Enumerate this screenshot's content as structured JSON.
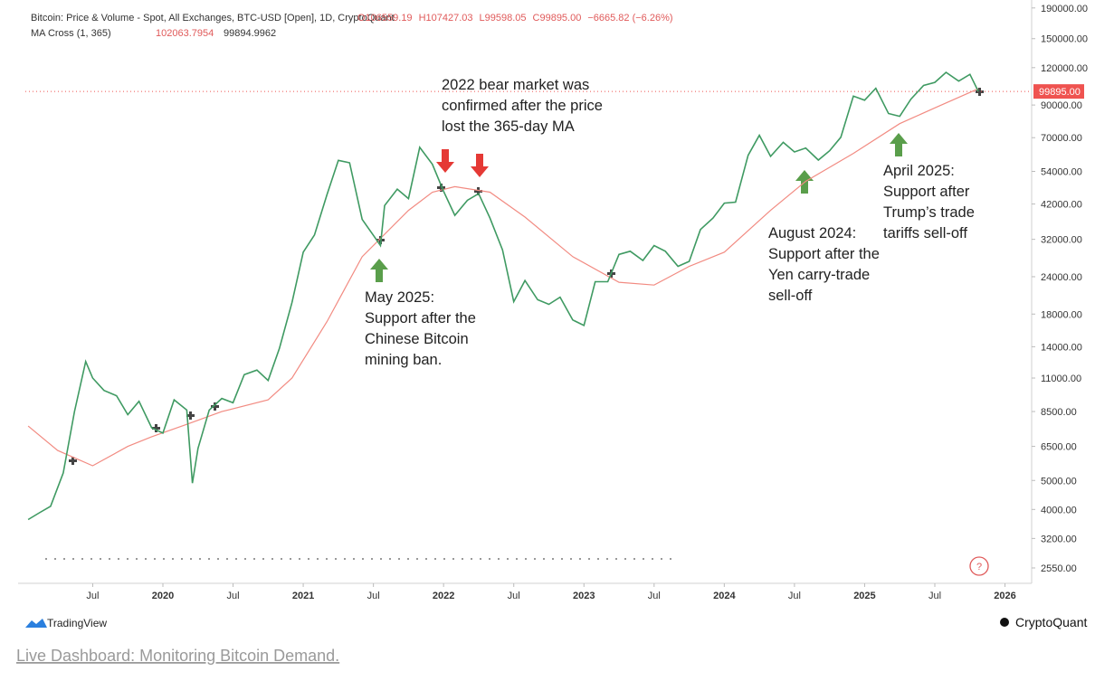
{
  "chart_data": {
    "type": "line",
    "title": "Bitcoin: Price & Volume - Spot, All Exchanges, BTC-USD [Open], 1D, CryptoQuant",
    "ohlc": [
      "O106559.19",
      "H107427.03",
      "L99598.05",
      "C99895.00",
      "−6665.82 (−6.26%)"
    ],
    "indicator": "MA Cross (1, 365)",
    "indicator_values": [
      "102063.7954",
      "99894.9962"
    ],
    "log_scale": true,
    "xlim": [
      2019.02,
      2026.19
    ],
    "ylim": [
      2265,
      202000
    ],
    "xticks": [
      {
        "value": 2019.5,
        "label": "Jul"
      },
      2020,
      {
        "value": 2020.5,
        "label": "Jul"
      },
      2021,
      {
        "value": 2021.5,
        "label": "Jul"
      },
      2022,
      {
        "value": 2022.5,
        "label": "Jul"
      },
      2023,
      {
        "value": 2023.5,
        "label": "Jul"
      },
      2024,
      {
        "value": 2024.5,
        "label": "Jul"
      },
      2025,
      {
        "value": 2025.5,
        "label": "Jul"
      },
      2026
    ],
    "yticks": [
      {
        "value": 190000,
        "label": "190000.00"
      },
      {
        "value": 150000,
        "label": "150000.00"
      },
      {
        "value": 120000,
        "label": "120000.00"
      },
      {
        "value": 90000,
        "label": "90000.00"
      },
      {
        "value": 70000,
        "label": "70000.00"
      },
      {
        "value": 54000,
        "label": "54000.00"
      },
      {
        "value": 42000,
        "label": "42000.00"
      },
      {
        "value": 32000,
        "label": "32000.00"
      },
      {
        "value": 24000,
        "label": "24000.00"
      },
      {
        "value": 18000,
        "label": "18000.00"
      },
      {
        "value": 14000,
        "label": "14000.00"
      },
      {
        "value": 11000,
        "label": "11000.00"
      },
      {
        "value": 8500,
        "label": "8500.00"
      },
      {
        "value": 6500,
        "label": "6500.00"
      },
      {
        "value": 5000,
        "label": "5000.00"
      },
      {
        "value": 4000,
        "label": "4000.00"
      },
      {
        "value": 3200,
        "label": "3200.00"
      },
      {
        "value": 2550,
        "label": "2550.00"
      }
    ],
    "price_line": {
      "value": 99895,
      "label": "99895.00",
      "color": "#ef5350"
    },
    "series": [
      {
        "name": "Price",
        "color": "#3f9a62",
        "x": [
          2019.04,
          2019.12,
          2019.2,
          2019.29,
          2019.37,
          2019.45,
          2019.5,
          2019.58,
          2019.67,
          2019.75,
          2019.83,
          2019.92,
          2020.0,
          2020.08,
          2020.17,
          2020.21,
          2020.25,
          2020.33,
          2020.42,
          2020.5,
          2020.58,
          2020.67,
          2020.75,
          2020.83,
          2020.92,
          2021.0,
          2021.08,
          2021.17,
          2021.25,
          2021.33,
          2021.42,
          2021.5,
          2021.55,
          2021.58,
          2021.67,
          2021.75,
          2021.83,
          2021.92,
          2022.0,
          2022.08,
          2022.17,
          2022.25,
          2022.33,
          2022.42,
          2022.5,
          2022.58,
          2022.67,
          2022.75,
          2022.83,
          2022.92,
          2023.0,
          2023.08,
          2023.17,
          2023.25,
          2023.33,
          2023.42,
          2023.5,
          2023.58,
          2023.67,
          2023.75,
          2023.83,
          2023.92,
          2024.0,
          2024.08,
          2024.17,
          2024.25,
          2024.33,
          2024.42,
          2024.5,
          2024.58,
          2024.67,
          2024.75,
          2024.83,
          2024.92,
          2025.0,
          2025.08,
          2025.17,
          2025.25,
          2025.33,
          2025.42,
          2025.5,
          2025.58,
          2025.67,
          2025.75,
          2025.81
        ],
        "values": [
          3700,
          3900,
          4100,
          5300,
          8500,
          12500,
          11000,
          10000,
          9600,
          8300,
          9200,
          7500,
          7200,
          9300,
          8600,
          4900,
          6400,
          8600,
          9400,
          9100,
          11300,
          11700,
          10800,
          13800,
          19700,
          29000,
          33100,
          45200,
          58800,
          57700,
          37300,
          33000,
          30500,
          41500,
          47100,
          43800,
          65000,
          57000,
          46300,
          38500,
          43200,
          45500,
          37700,
          29500,
          19800,
          23300,
          20100,
          19400,
          20500,
          17200,
          16500,
          23100,
          23100,
          28500,
          29200,
          27200,
          30500,
          29200,
          26000,
          27000,
          34500,
          37700,
          42300,
          42600,
          61100,
          71300,
          60600,
          67500,
          62700,
          64600,
          58900,
          63300,
          70200,
          96400,
          93400,
          102400,
          84300,
          82500,
          94200,
          104600,
          107100,
          115700,
          108200,
          114000,
          99895
        ]
      },
      {
        "name": "MA 365",
        "color": "#f28b82",
        "x": [
          2019.04,
          2019.25,
          2019.5,
          2019.75,
          2019.92,
          2020.17,
          2020.42,
          2020.75,
          2020.92,
          2021.17,
          2021.42,
          2021.75,
          2021.92,
          2022.08,
          2022.33,
          2022.58,
          2022.92,
          2023.25,
          2023.5,
          2023.75,
          2024.0,
          2024.33,
          2024.58,
          2024.92,
          2025.25,
          2025.5,
          2025.81
        ],
        "values": [
          7600,
          6300,
          5600,
          6500,
          7000,
          7700,
          8500,
          9300,
          11000,
          17000,
          28000,
          40000,
          46000,
          48000,
          46000,
          38000,
          28000,
          23000,
          22500,
          26000,
          29000,
          40000,
          50000,
          62000,
          78000,
          88000,
          102064
        ]
      }
    ],
    "annotations": [
      [
        "2022 bear market was",
        "confirmed after the price",
        "lost the 365-day MA"
      ],
      [
        "May 2025:",
        "Support after the",
        "Chinese Bitcoin",
        "mining ban."
      ],
      [
        "August 2024:",
        "Support after the",
        "Yen carry-trade",
        "sell-off"
      ],
      [
        "April 2025:",
        "Support after",
        "Trump’s trade",
        "tariffs sell-off"
      ]
    ]
  },
  "branding": {
    "left": "TradingView",
    "right": "CryptoQuant"
  },
  "link": "Live Dashboard: Monitoring Bitcoin Demand."
}
